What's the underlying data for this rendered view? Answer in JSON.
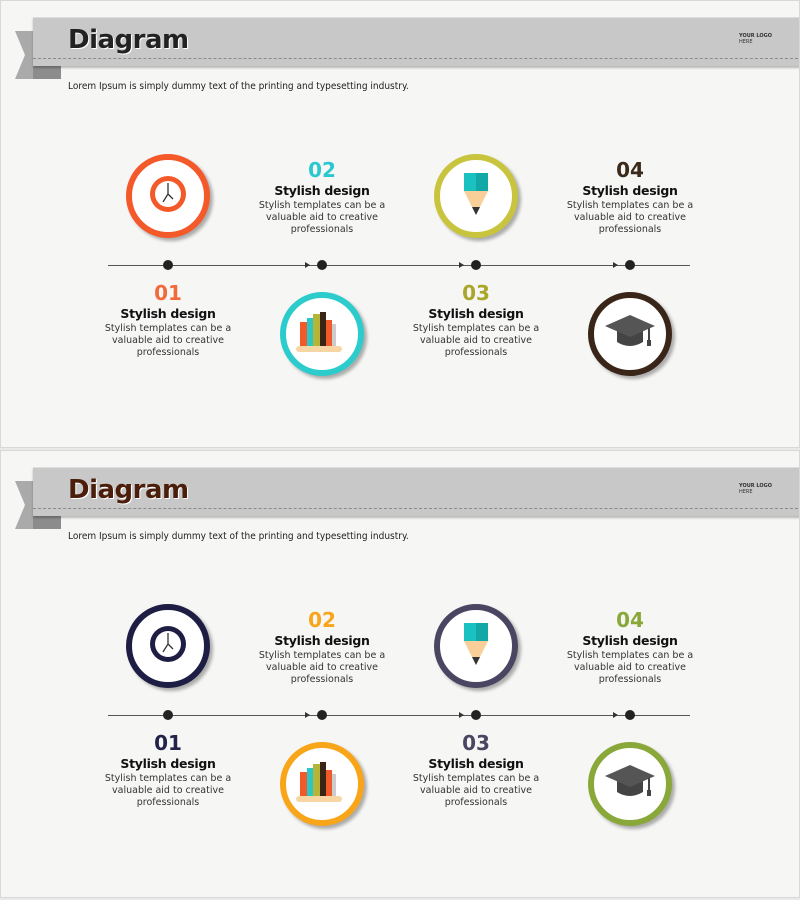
{
  "slides": [
    {
      "title": "Diagram",
      "title_color": "#222222",
      "logo_line1": "YOUR LOGO",
      "logo_line2": "HERE",
      "subtitle": "Lorem Ipsum is simply dummy text of the printing and typesetting industry.",
      "steps": [
        {
          "number": "01",
          "title": "Stylish design",
          "body": "Stylish templates can be a valuable aid to creative professionals",
          "color": "#f4592a",
          "number_color": "#f26a3a",
          "icon": "clock-icon"
        },
        {
          "number": "02",
          "title": "Stylish design",
          "body": "Stylish templates can be a valuable aid to creative professionals",
          "color": "#2ccccc",
          "number_color": "#29c8d0",
          "icon": "books-icon"
        },
        {
          "number": "03",
          "title": "Stylish design",
          "body": "Stylish templates can be a valuable aid to creative professionals",
          "color": "#c8c43e",
          "number_color": "#a9a62a",
          "icon": "pencil-icon"
        },
        {
          "number": "04",
          "title": "Stylish design",
          "body": "Stylish templates can be a valuable aid to creative professionals",
          "color": "#3a2618",
          "number_color": "#3a2a1a",
          "icon": "graduation-cap-icon"
        }
      ]
    },
    {
      "title": "Diagram",
      "title_color": "#4a1e0a",
      "logo_line1": "YOUR LOGO",
      "logo_line2": "HERE",
      "subtitle": "Lorem Ipsum is simply dummy text of the printing and typesetting industry.",
      "steps": [
        {
          "number": "01",
          "title": "Stylish design",
          "body": "Stylish templates can be a valuable aid to creative professionals",
          "color": "#1e1e44",
          "number_color": "#22224a",
          "icon": "clock-icon"
        },
        {
          "number": "02",
          "title": "Stylish design",
          "body": "Stylish templates can be a valuable aid to creative professionals",
          "color": "#f9a51a",
          "number_color": "#f9a51a",
          "icon": "books-icon"
        },
        {
          "number": "03",
          "title": "Stylish design",
          "body": "Stylish templates can be a valuable aid to creative professionals",
          "color": "#4a4560",
          "number_color": "#4a4560",
          "icon": "pencil-icon"
        },
        {
          "number": "04",
          "title": "Stylish design",
          "body": "Stylish templates can be a valuable aid to creative professionals",
          "color": "#8aa83a",
          "number_color": "#8aa83a",
          "icon": "graduation-cap-icon"
        }
      ]
    }
  ]
}
